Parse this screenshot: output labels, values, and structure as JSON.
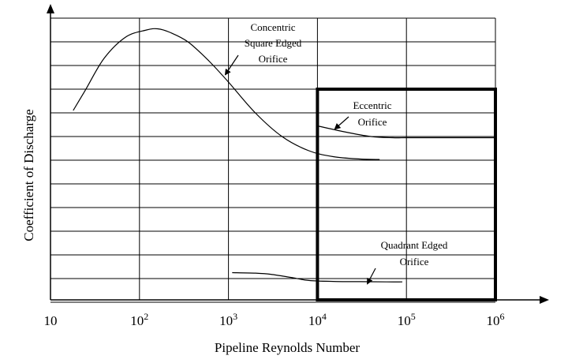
{
  "chart_data": {
    "type": "line",
    "title": "",
    "xlabel": "Pipeline  Reynolds Number",
    "ylabel": "Coefficient of Discharge",
    "x_scale": "log",
    "xlim": [
      10,
      1000000
    ],
    "x_ticks": [
      {
        "base": "10",
        "exp": ""
      },
      {
        "base": "10",
        "exp": "2"
      },
      {
        "base": "10",
        "exp": "3"
      },
      {
        "base": "10",
        "exp": "4"
      },
      {
        "base": "10",
        "exp": "5"
      },
      {
        "base": "10",
        "exp": "6"
      }
    ],
    "y_tick_labels": "none",
    "grid": true,
    "series": [
      {
        "name": "Concentric Square Edged Orifice",
        "label_lines": [
          "Concentric",
          "Square Edged",
          "Orifice"
        ],
        "x": [
          18,
          25,
          40,
          70,
          120,
          160,
          220,
          350,
          600,
          1000,
          2000,
          4000,
          8000,
          15000,
          30000,
          50000
        ],
        "y": [
          8.0,
          8.9,
          10.2,
          11.1,
          11.4,
          11.45,
          11.3,
          10.9,
          10.1,
          9.2,
          7.9,
          6.9,
          6.3,
          6.05,
          5.95,
          5.93
        ]
      },
      {
        "name": "Eccentric Orifice",
        "label_lines": [
          "Eccentric",
          "Orifice"
        ],
        "x": [
          10000,
          20000,
          40000,
          70000,
          100000,
          300000,
          1000000
        ],
        "y": [
          7.35,
          7.1,
          6.9,
          6.85,
          6.85,
          6.85,
          6.85
        ]
      },
      {
        "name": "Quadrant Edged Orifice",
        "label_lines": [
          "Quadrant Edged",
          "Orifice"
        ],
        "x": [
          1100,
          2000,
          3000,
          5000,
          8000,
          15000,
          30000,
          60000,
          90000
        ],
        "y": [
          1.15,
          1.13,
          1.08,
          0.95,
          0.82,
          0.78,
          0.77,
          0.76,
          0.76
        ]
      }
    ],
    "highlight_box": {
      "x": [
        10000,
        1000000
      ],
      "y": [
        0,
        8.9
      ]
    }
  }
}
